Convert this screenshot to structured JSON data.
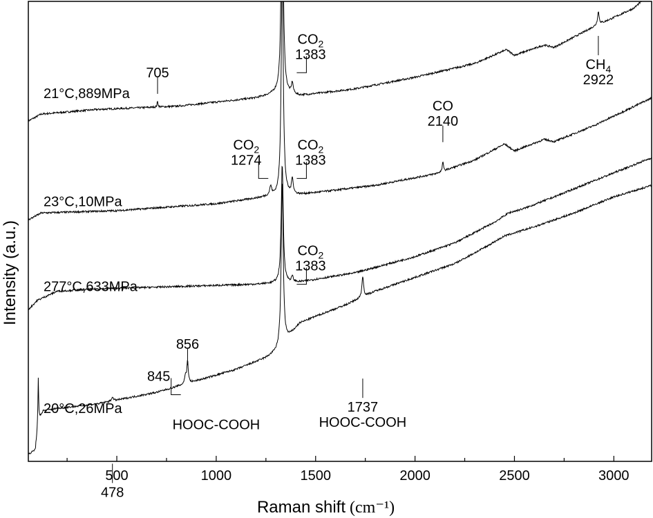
{
  "chart_data": {
    "type": "line",
    "title": "",
    "xlabel": "Raman shift",
    "xlabel_unit": "(cm⁻¹)",
    "ylabel": "Intensity (a.u.)",
    "xlim": [
      55,
      3190
    ],
    "x_ticks": [
      500,
      1000,
      1500,
      2000,
      2500,
      3000
    ],
    "x_minor_step": 250,
    "y_ticks_shown": false,
    "grid": false,
    "legend": "none",
    "series": [
      {
        "name": "21°C,889MPa",
        "baseline": [
          [
            55,
            0.74
          ],
          [
            120,
            0.755
          ],
          [
            400,
            0.765
          ],
          [
            800,
            0.772
          ],
          [
            1200,
            0.79
          ],
          [
            1300,
            0.8
          ],
          [
            1420,
            0.795
          ],
          [
            1700,
            0.81
          ],
          [
            2000,
            0.835
          ],
          [
            2300,
            0.865
          ],
          [
            2460,
            0.895
          ],
          [
            2500,
            0.883
          ],
          [
            2650,
            0.905
          ],
          [
            2700,
            0.9
          ],
          [
            2900,
            0.945
          ],
          [
            3100,
            0.985
          ],
          [
            3190,
            1.02
          ]
        ],
        "peaks": [
          {
            "x": 705,
            "h": 0.012,
            "w": 3
          },
          {
            "x": 1332,
            "h": 0.5,
            "w": 6
          },
          {
            "x": 1383,
            "h": 0.024,
            "w": 5
          },
          {
            "x": 2922,
            "h": 0.028,
            "w": 5
          }
        ]
      },
      {
        "name": "23°C,10MPa",
        "baseline": [
          [
            55,
            0.525
          ],
          [
            120,
            0.54
          ],
          [
            500,
            0.545
          ],
          [
            1000,
            0.56
          ],
          [
            1250,
            0.575
          ],
          [
            1420,
            0.58
          ],
          [
            1800,
            0.6
          ],
          [
            2100,
            0.625
          ],
          [
            2300,
            0.655
          ],
          [
            2450,
            0.69
          ],
          [
            2500,
            0.675
          ],
          [
            2650,
            0.7
          ],
          [
            2700,
            0.695
          ],
          [
            2900,
            0.73
          ],
          [
            3190,
            0.79
          ]
        ],
        "peaks": [
          {
            "x": 1274,
            "h": 0.02,
            "w": 6
          },
          {
            "x": 1332,
            "h": 0.5,
            "w": 6
          },
          {
            "x": 1383,
            "h": 0.035,
            "w": 5
          },
          {
            "x": 2140,
            "h": 0.022,
            "w": 3
          }
        ]
      },
      {
        "name": "277°C,633MPa",
        "baseline": [
          [
            55,
            0.33
          ],
          [
            100,
            0.35
          ],
          [
            200,
            0.37
          ],
          [
            400,
            0.375
          ],
          [
            800,
            0.38
          ],
          [
            1200,
            0.385
          ],
          [
            1420,
            0.39
          ],
          [
            1700,
            0.41
          ],
          [
            2000,
            0.445
          ],
          [
            2200,
            0.475
          ],
          [
            2400,
            0.52
          ],
          [
            2470,
            0.54
          ],
          [
            2550,
            0.55
          ],
          [
            2700,
            0.575
          ],
          [
            2900,
            0.61
          ],
          [
            3190,
            0.66
          ]
        ],
        "peaks": [
          {
            "x": 1332,
            "h": 0.26,
            "w": 6
          },
          {
            "x": 1383,
            "h": 0.012,
            "w": 5
          }
        ]
      },
      {
        "name": "20°C,26MPa",
        "baseline": [
          [
            55,
            0.015
          ],
          [
            90,
            0.025
          ],
          [
            105,
            0.09
          ],
          [
            130,
            0.11
          ],
          [
            200,
            0.115
          ],
          [
            400,
            0.125
          ],
          [
            700,
            0.15
          ],
          [
            900,
            0.175
          ],
          [
            1100,
            0.2
          ],
          [
            1250,
            0.225
          ],
          [
            1310,
            0.24
          ],
          [
            1420,
            0.3
          ],
          [
            1500,
            0.315
          ],
          [
            1650,
            0.34
          ],
          [
            1800,
            0.37
          ],
          [
            2000,
            0.4
          ],
          [
            2200,
            0.43
          ],
          [
            2350,
            0.465
          ],
          [
            2450,
            0.49
          ],
          [
            2600,
            0.51
          ],
          [
            2800,
            0.54
          ],
          [
            3000,
            0.575
          ],
          [
            3190,
            0.6
          ]
        ],
        "peaks": [
          {
            "x": 105,
            "h": 0.09,
            "w": 2
          },
          {
            "x": 478,
            "h": 0.01,
            "w": 4
          },
          {
            "x": 845,
            "h": 0.018,
            "w": 5
          },
          {
            "x": 856,
            "h": 0.05,
            "w": 4
          },
          {
            "x": 1332,
            "h": 0.36,
            "w": 6
          },
          {
            "x": 1737,
            "h": 0.045,
            "w": 5
          }
        ]
      }
    ],
    "series_labels": [
      {
        "text": "21°C,889MPa",
        "x": 55,
        "y": 0.79
      },
      {
        "text": "23°C,10MPa",
        "x": 55,
        "y": 0.555
      },
      {
        "text": "277°C,633MPa",
        "x": 55,
        "y": 0.37
      },
      {
        "text": "20°C,26MPa",
        "x": 55,
        "y": 0.105
      }
    ],
    "annotations": [
      {
        "id": "ann-705",
        "lines": [
          "705"
        ],
        "x": 705,
        "y": 0.835,
        "marker": "stick"
      },
      {
        "id": "ann-co2-1383-a",
        "lines": [
          "CO",
          "1383"
        ],
        "sub": "2",
        "x": 1405,
        "y": 0.875,
        "marker": "bracket"
      },
      {
        "id": "ann-ch4-2922",
        "lines": [
          "CH",
          "2922"
        ],
        "sub": "4",
        "x": 2922,
        "y": 0.97,
        "marker": "stick-below"
      },
      {
        "id": "ann-co2-1274",
        "lines": [
          "CO",
          "1274"
        ],
        "sub": "2",
        "x": 1255,
        "y": 0.645,
        "marker": "bracket-left"
      },
      {
        "id": "ann-co2-1383-b",
        "lines": [
          "CO",
          "1383"
        ],
        "sub": "2",
        "x": 1405,
        "y": 0.645,
        "marker": "bracket"
      },
      {
        "id": "ann-co-2140",
        "lines": [
          "CO",
          "2140"
        ],
        "x": 2140,
        "y": 0.73,
        "marker": "stick"
      },
      {
        "id": "ann-co2-1383-c",
        "lines": [
          "CO",
          "1383"
        ],
        "sub": "2",
        "x": 1405,
        "y": 0.415,
        "marker": "bracket"
      },
      {
        "id": "ann-845",
        "lines": [
          "845"
        ],
        "x": 815,
        "y": 0.175,
        "marker": "bracket-left"
      },
      {
        "id": "ann-856",
        "lines": [
          "856"
        ],
        "x": 856,
        "y": 0.245,
        "marker": "stick"
      },
      {
        "id": "ann-478",
        "lines": [
          "478"
        ],
        "x": 478,
        "y": 0.04,
        "marker": "stick-below"
      },
      {
        "id": "ann-hooc-1",
        "lines": [
          "HOOC-COOH"
        ],
        "x": 1000,
        "y": 0.07,
        "marker": "none"
      },
      {
        "id": "ann-1737",
        "lines": [
          "1737",
          "HOOC-COOH"
        ],
        "x": 1737,
        "y": 0.225,
        "marker": "stick-below"
      }
    ]
  }
}
